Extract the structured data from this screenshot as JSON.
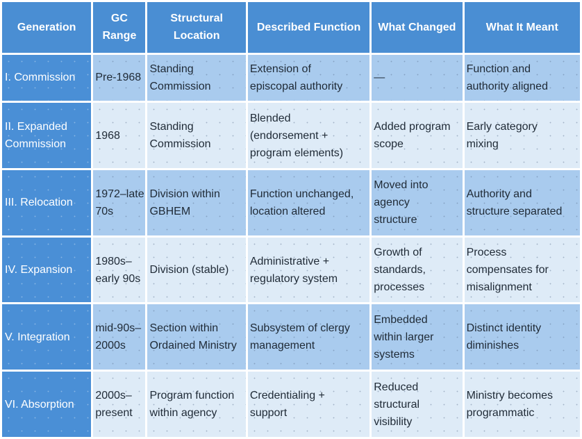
{
  "headers": [
    [
      "Generation"
    ],
    [
      "GC",
      "Range"
    ],
    [
      "Structural",
      "Location"
    ],
    [
      "Described Function"
    ],
    [
      "What Changed"
    ],
    [
      "What It Meant"
    ]
  ],
  "rows": [
    [
      [
        "I. Commission"
      ],
      [
        "Pre-1968"
      ],
      [
        "Standing",
        "Commission"
      ],
      [
        "Extension of",
        "episcopal authority"
      ],
      [
        "—"
      ],
      [
        "Function and",
        "authority aligned"
      ]
    ],
    [
      [
        "II. Expanded",
        "Commission"
      ],
      [
        "1968"
      ],
      [
        "Standing",
        "Commission"
      ],
      [
        "Blended",
        "(endorsement +",
        "program elements)"
      ],
      [
        "Added program",
        "scope"
      ],
      [
        "Early category",
        "mixing"
      ]
    ],
    [
      [
        "III. Relocation"
      ],
      [
        "1972–late",
        "70s"
      ],
      [
        "Division within",
        "GBHEM"
      ],
      [
        "Function unchanged,",
        "location altered"
      ],
      [
        "Moved into",
        "agency",
        "structure"
      ],
      [
        "Authority and",
        "structure separated"
      ]
    ],
    [
      [
        "IV. Expansion"
      ],
      [
        "1980s–",
        "early 90s"
      ],
      [
        "Division (stable)"
      ],
      [
        "Administrative +",
        "regulatory system"
      ],
      [
        "Growth of",
        "standards,",
        "processes"
      ],
      [
        "Process",
        "compensates for",
        "misalignment"
      ]
    ],
    [
      [
        "V. Integration"
      ],
      [
        "mid-90s–",
        "2000s"
      ],
      [
        "Section within",
        "Ordained Ministry"
      ],
      [
        "Subsystem of clergy",
        "management"
      ],
      [
        "Embedded",
        "within larger",
        "systems"
      ],
      [
        "Distinct identity",
        "diminishes"
      ]
    ],
    [
      [
        "VI. Absorption"
      ],
      [
        "2000s–",
        "present"
      ],
      [
        "Program function",
        "within agency"
      ],
      [
        "Credentialing +",
        "support"
      ],
      [
        "Reduced",
        "structural",
        "visibility"
      ],
      [
        "Ministry becomes",
        "programmatic"
      ]
    ]
  ]
}
